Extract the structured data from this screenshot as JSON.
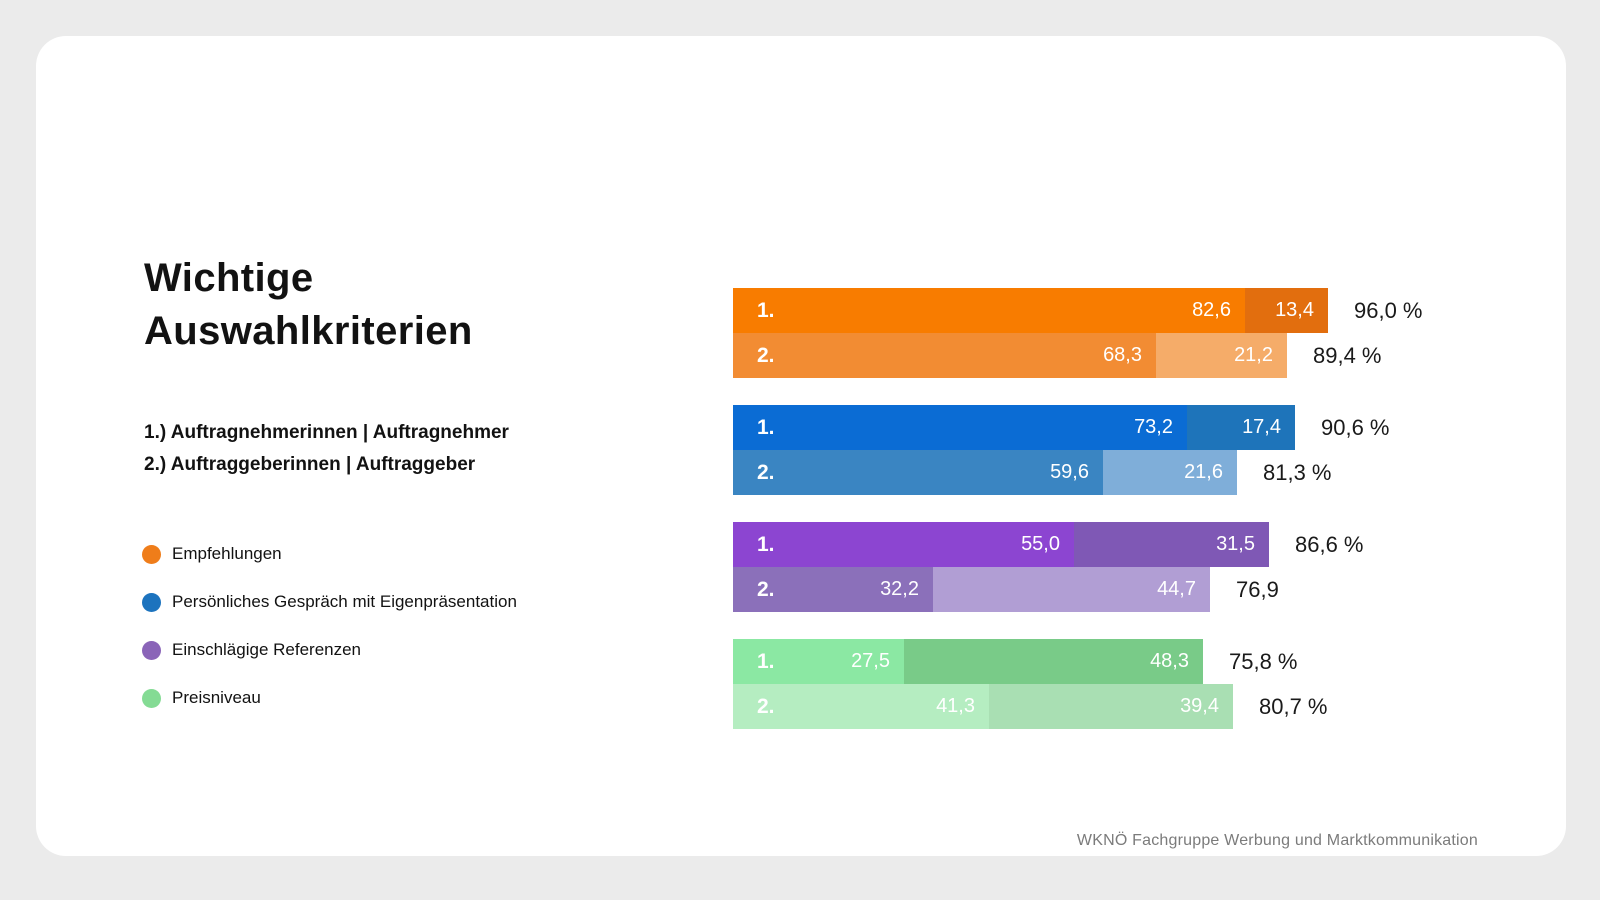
{
  "page": {
    "background": "#EBEBEB",
    "card_background": "#FFFFFF"
  },
  "header": {
    "title": "Wichtige Auswahlkriterien"
  },
  "notes": [
    "1.) Auftragnehmerinnen | Auftragnehmer",
    "2.) Auftraggeberinnen | Auftraggeber"
  ],
  "legend": {
    "items": [
      {
        "id": "empfehlungen",
        "label": "Empfehlungen",
        "color": "#EF7D1A"
      },
      {
        "id": "gespraech",
        "label": "Persönliches Gespräch mit Eigenpräsentation",
        "color": "#1C73BE"
      },
      {
        "id": "referenzen",
        "label": "Einschlägige Referenzen",
        "color": "#8A64B8"
      },
      {
        "id": "preisniveau",
        "label": "Preisniveau",
        "color": "#84DB94"
      }
    ]
  },
  "footer": {
    "credit": "WKNÖ Fachgruppe Werbung und Marktkommunikation"
  },
  "chart_data": {
    "type": "bar",
    "orientation": "horizontal",
    "stacked": true,
    "unit": "percent",
    "axis_range": [
      0,
      100
    ],
    "grid": false,
    "row_meaning": {
      "1.": "Auftragnehmerinnen | Auftragnehmer",
      "2.": "Auftraggeberinnen | Auftraggeber"
    },
    "groups": [
      {
        "id": "empfehlungen",
        "label": "Empfehlungen",
        "rows": [
          {
            "label": "1.",
            "segments": [
              {
                "value": 82.6,
                "display": "82,6",
                "color": "#F87C00"
              },
              {
                "value": 13.4,
                "display": "13,4",
                "color": "#E26E0E"
              }
            ],
            "total_value": 96.0,
            "total_display": "96,0 %"
          },
          {
            "label": "2.",
            "segments": [
              {
                "value": 68.3,
                "display": "68,3",
                "color": "#F28C33"
              },
              {
                "value": 21.2,
                "display": "21,2",
                "color": "#F5AC69"
              }
            ],
            "total_value": 89.4,
            "total_display": "89,4 %"
          }
        ]
      },
      {
        "id": "gespraech",
        "label": "Persönliches Gespräch mit Eigenpräsentation",
        "rows": [
          {
            "label": "1.",
            "segments": [
              {
                "value": 73.2,
                "display": "73,2",
                "color": "#0B6CD4"
              },
              {
                "value": 17.4,
                "display": "17,4",
                "color": "#1E74BA"
              }
            ],
            "total_value": 90.6,
            "total_display": "90,6 %"
          },
          {
            "label": "2.",
            "segments": [
              {
                "value": 59.6,
                "display": "59,6",
                "color": "#3A85C2"
              },
              {
                "value": 21.6,
                "display": "21,6",
                "color": "#7FAED9"
              }
            ],
            "total_value": 81.3,
            "total_display": "81,3 %"
          }
        ]
      },
      {
        "id": "referenzen",
        "label": "Einschlägige Referenzen",
        "rows": [
          {
            "label": "1.",
            "segments": [
              {
                "value": 55.0,
                "display": "55,0",
                "color": "#8C45D1"
              },
              {
                "value": 31.5,
                "display": "31,5",
                "color": "#7F58B5"
              }
            ],
            "total_value": 86.6,
            "total_display": "86,6 %"
          },
          {
            "label": "2.",
            "segments": [
              {
                "value": 32.2,
                "display": "32,2",
                "color": "#8B70BA"
              },
              {
                "value": 44.7,
                "display": "44,7",
                "color": "#B19ED4"
              }
            ],
            "total_value": 76.9,
            "total_display": "76,9"
          }
        ]
      },
      {
        "id": "preisniveau",
        "label": "Preisniveau",
        "rows": [
          {
            "label": "1.",
            "segments": [
              {
                "value": 27.5,
                "display": "27,5",
                "color": "#8BE8A3"
              },
              {
                "value": 48.3,
                "display": "48,3",
                "color": "#79CB88"
              }
            ],
            "total_value": 75.8,
            "total_display": "75,8 %"
          },
          {
            "label": "2.",
            "segments": [
              {
                "value": 41.3,
                "display": "41,3",
                "color": "#B5EDC1"
              },
              {
                "value": 39.4,
                "display": "39,4",
                "color": "#A9DFB3"
              }
            ],
            "total_value": 80.7,
            "total_display": "80,7 %"
          }
        ]
      }
    ]
  }
}
